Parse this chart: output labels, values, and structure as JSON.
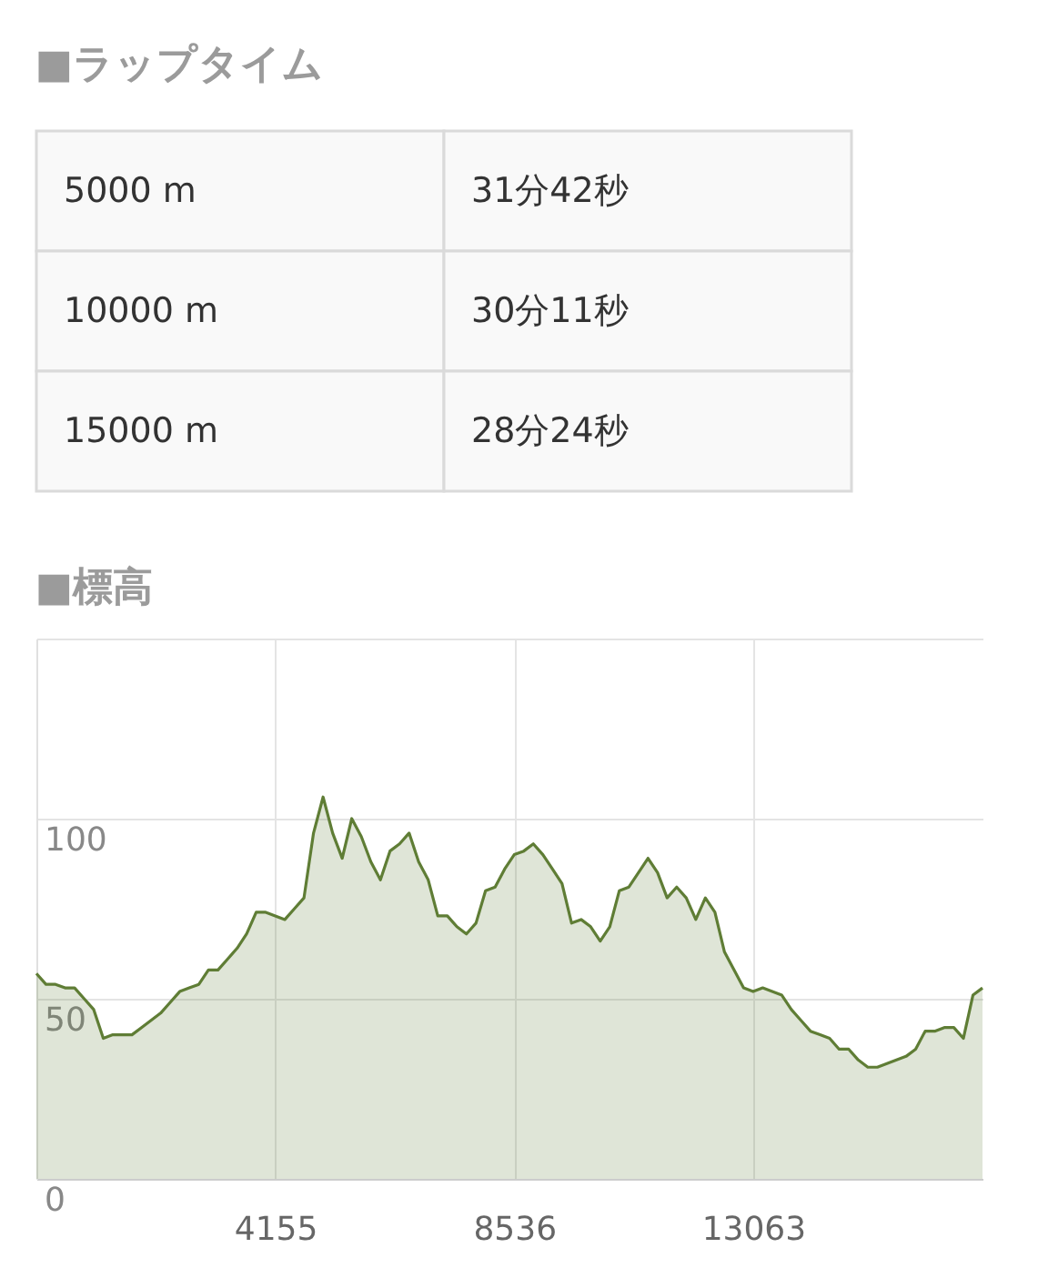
{
  "chart_data": [
    {
      "type": "other",
      "title": "■ラップタイム",
      "annotations": [
        "5000 m",
        "31分42秒",
        "10000 m",
        "30分11秒",
        "15000 m",
        "28分24秒"
      ]
    },
    {
      "type": "area",
      "title": "■標高",
      "color": "#5f7d35",
      "grid": true,
      "ylim": [
        0,
        150
      ],
      "yticks": [
        0,
        50,
        100,
        {
          "value": 150,
          "label": null
        }
      ],
      "categories": [
        null,
        null,
        null,
        null,
        null,
        null,
        null,
        null,
        null,
        null,
        null,
        null,
        null,
        null,
        null,
        null,
        null,
        null,
        null,
        null,
        null,
        null,
        null,
        null,
        null,
        "4155",
        null,
        null,
        null,
        null,
        null,
        null,
        null,
        null,
        null,
        null,
        null,
        null,
        null,
        null,
        null,
        null,
        null,
        null,
        null,
        null,
        null,
        null,
        null,
        null,
        "8536",
        null,
        null,
        null,
        null,
        null,
        null,
        null,
        null,
        null,
        null,
        null,
        null,
        null,
        null,
        null,
        null,
        null,
        null,
        null,
        null,
        null,
        null,
        null,
        null,
        "13063",
        null,
        null,
        null,
        null,
        null,
        null,
        null,
        null,
        null,
        null,
        null,
        null,
        null,
        null,
        null,
        null,
        null,
        null,
        null,
        null,
        null,
        null,
        null,
        null
      ],
      "values": [
        57,
        54,
        54,
        53,
        53,
        50,
        47,
        39,
        40,
        40,
        40,
        42,
        44,
        46,
        49,
        52,
        53,
        54,
        58,
        58,
        61,
        64,
        68,
        74,
        74,
        73,
        72,
        75,
        78,
        96,
        106,
        96,
        89,
        100,
        95,
        88,
        83,
        91,
        93,
        96,
        88,
        83,
        73,
        73,
        70,
        68,
        71,
        80,
        81,
        86,
        90,
        91,
        93,
        90,
        86,
        82,
        71,
        72,
        70,
        66,
        70,
        80,
        81,
        85,
        89,
        85,
        78,
        81,
        78,
        72,
        78,
        74,
        63,
        58,
        53,
        52,
        53,
        52,
        51,
        47,
        44,
        41,
        40,
        39,
        36,
        36,
        33,
        31,
        31,
        32,
        33,
        34,
        36,
        41,
        41,
        42,
        42,
        39,
        51,
        53
      ]
    }
  ]
}
